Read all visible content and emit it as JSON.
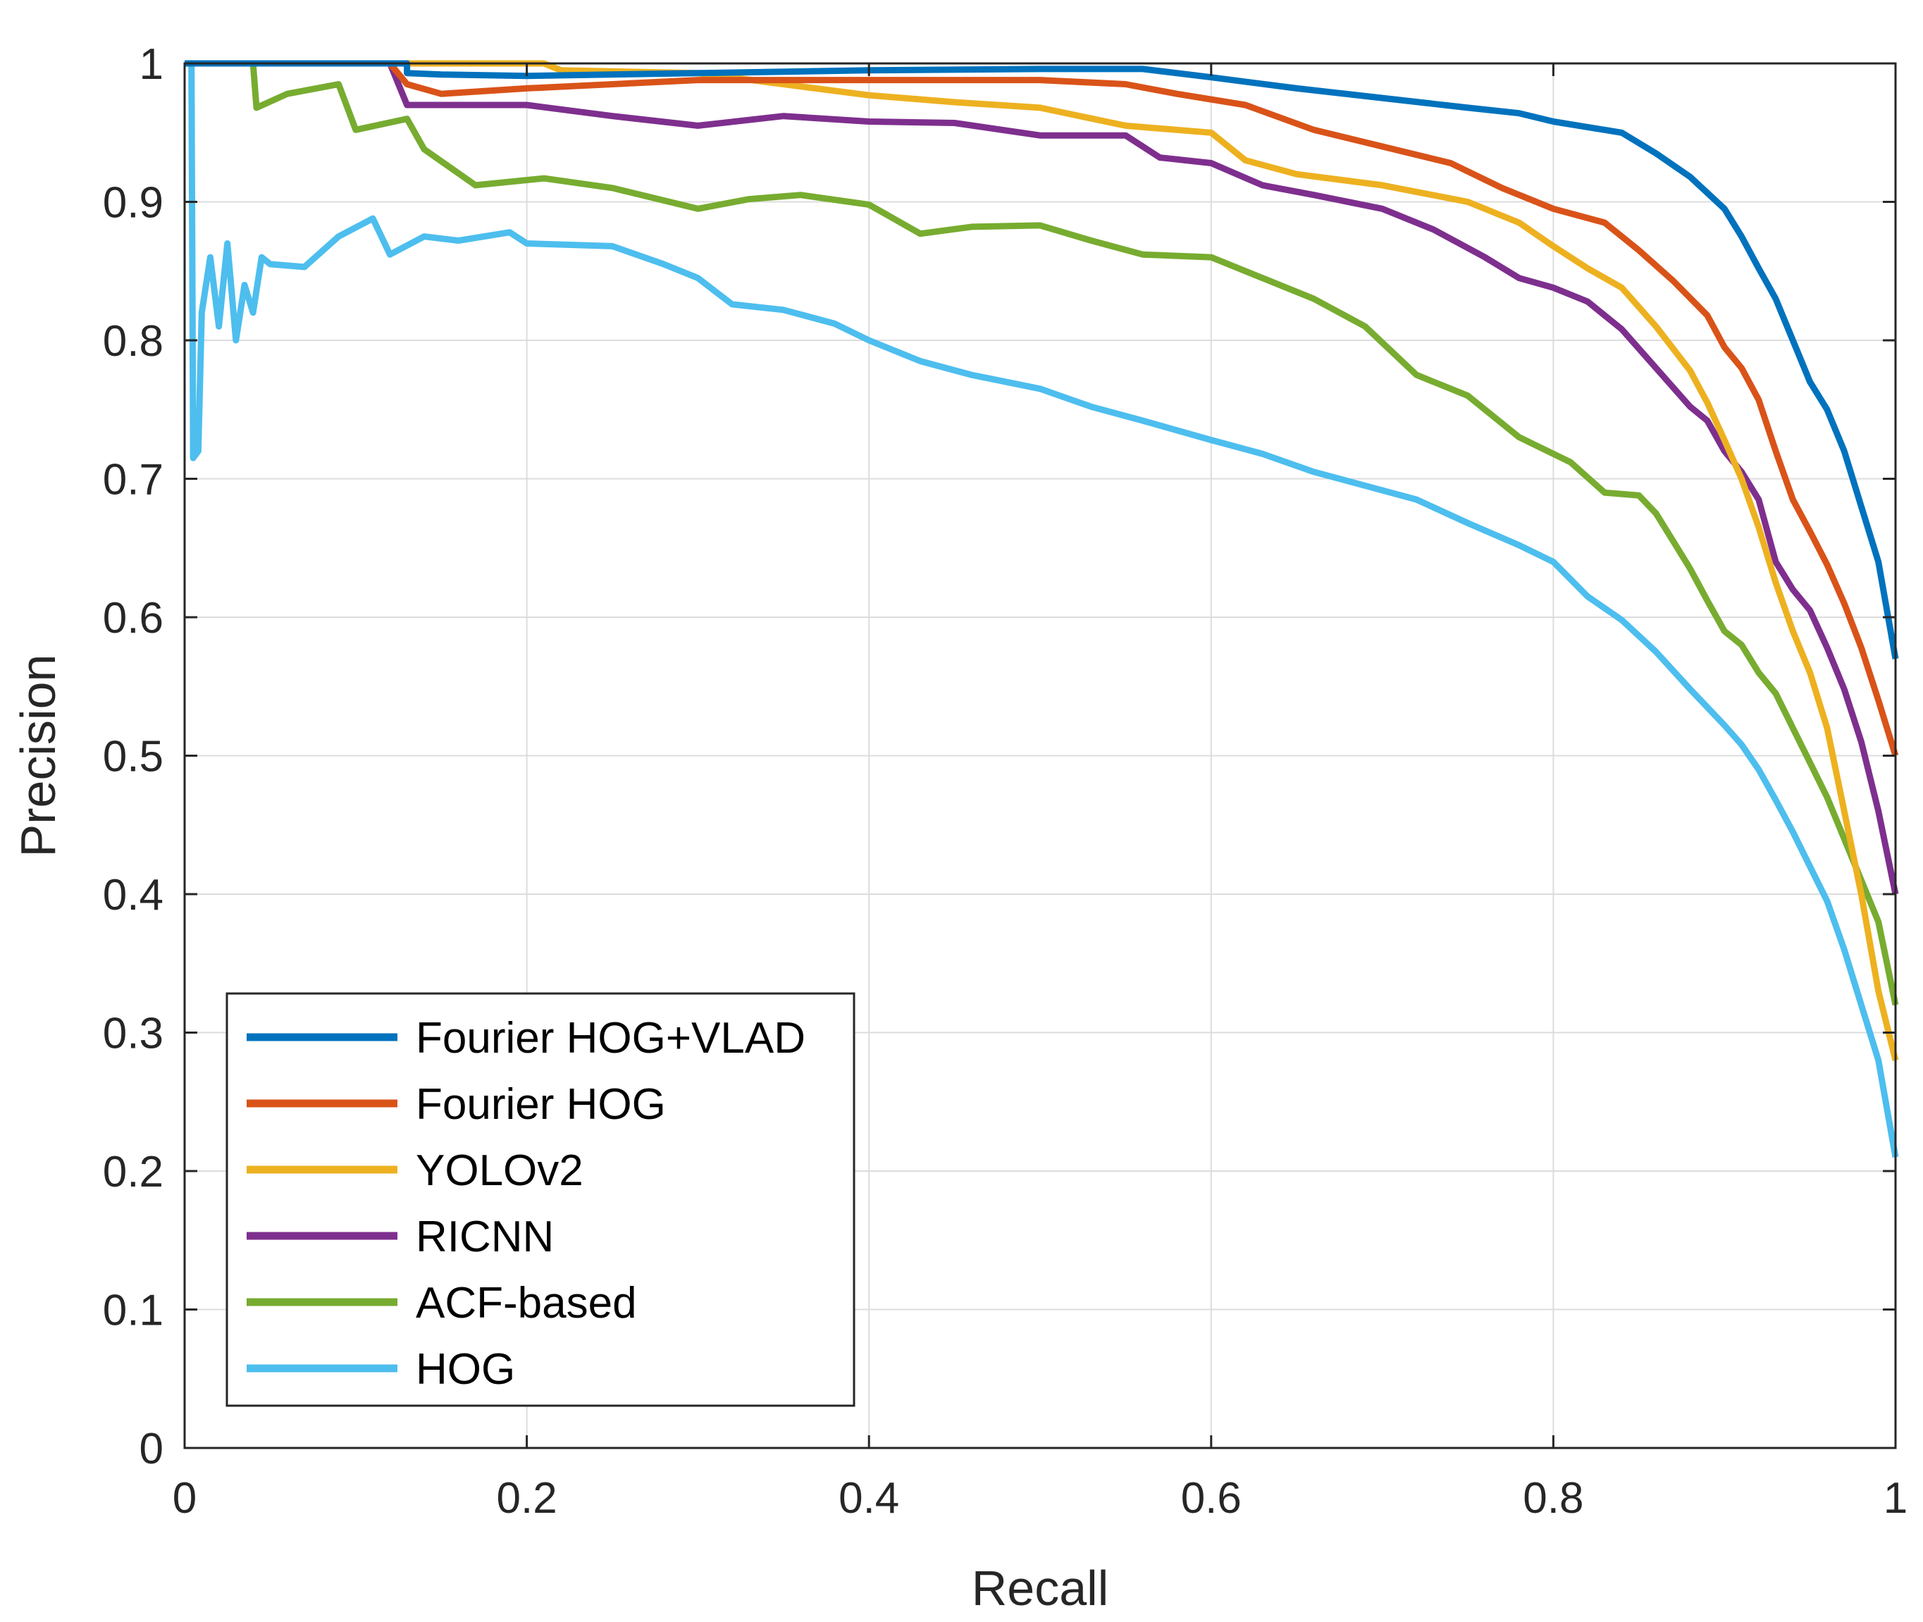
{
  "chart_data": {
    "type": "line",
    "title": "",
    "xlabel": "Recall",
    "ylabel": "Precision",
    "xlim": [
      0,
      1
    ],
    "ylim": [
      0,
      1
    ],
    "grid": true,
    "legend_location": "bottom-left",
    "xticks": [
      "0",
      "0.2",
      "0.4",
      "0.6",
      "0.8",
      "1"
    ],
    "yticks": [
      "0",
      "0.1",
      "0.2",
      "0.3",
      "0.4",
      "0.5",
      "0.6",
      "0.7",
      "0.8",
      "0.9",
      "1"
    ],
    "series": [
      {
        "name": "Fourier HOG+VLAD",
        "color": "#0072BD",
        "points": [
          [
            0,
            1
          ],
          [
            0.13,
            1
          ],
          [
            0.13,
            0.993
          ],
          [
            0.15,
            0.992
          ],
          [
            0.2,
            0.991
          ],
          [
            0.3,
            0.993
          ],
          [
            0.4,
            0.995
          ],
          [
            0.5,
            0.996
          ],
          [
            0.56,
            0.996
          ],
          [
            0.6,
            0.99
          ],
          [
            0.65,
            0.982
          ],
          [
            0.7,
            0.975
          ],
          [
            0.75,
            0.968
          ],
          [
            0.78,
            0.964
          ],
          [
            0.8,
            0.958
          ],
          [
            0.82,
            0.954
          ],
          [
            0.84,
            0.95
          ],
          [
            0.86,
            0.935
          ],
          [
            0.88,
            0.918
          ],
          [
            0.9,
            0.895
          ],
          [
            0.91,
            0.875
          ],
          [
            0.92,
            0.852
          ],
          [
            0.93,
            0.83
          ],
          [
            0.94,
            0.8
          ],
          [
            0.95,
            0.77
          ],
          [
            0.96,
            0.75
          ],
          [
            0.97,
            0.72
          ],
          [
            0.98,
            0.68
          ],
          [
            0.99,
            0.64
          ],
          [
            1.0,
            0.57
          ]
        ]
      },
      {
        "name": "Fourier HOG",
        "color": "#D95319",
        "points": [
          [
            0,
            1
          ],
          [
            0.12,
            1
          ],
          [
            0.13,
            0.985
          ],
          [
            0.15,
            0.978
          ],
          [
            0.2,
            0.982
          ],
          [
            0.3,
            0.988
          ],
          [
            0.4,
            0.988
          ],
          [
            0.5,
            0.988
          ],
          [
            0.55,
            0.985
          ],
          [
            0.58,
            0.978
          ],
          [
            0.62,
            0.97
          ],
          [
            0.66,
            0.952
          ],
          [
            0.7,
            0.94
          ],
          [
            0.74,
            0.928
          ],
          [
            0.77,
            0.91
          ],
          [
            0.8,
            0.895
          ],
          [
            0.83,
            0.885
          ],
          [
            0.85,
            0.865
          ],
          [
            0.87,
            0.843
          ],
          [
            0.89,
            0.818
          ],
          [
            0.9,
            0.795
          ],
          [
            0.91,
            0.78
          ],
          [
            0.92,
            0.757
          ],
          [
            0.93,
            0.72
          ],
          [
            0.94,
            0.685
          ],
          [
            0.95,
            0.662
          ],
          [
            0.96,
            0.638
          ],
          [
            0.97,
            0.61
          ],
          [
            0.98,
            0.578
          ],
          [
            0.99,
            0.54
          ],
          [
            1.0,
            0.5
          ]
        ]
      },
      {
        "name": "YOLOv2",
        "color": "#EDB120",
        "points": [
          [
            0,
            1
          ],
          [
            0.21,
            1
          ],
          [
            0.22,
            0.995
          ],
          [
            0.3,
            0.993
          ],
          [
            0.35,
            0.985
          ],
          [
            0.4,
            0.977
          ],
          [
            0.45,
            0.972
          ],
          [
            0.5,
            0.968
          ],
          [
            0.55,
            0.955
          ],
          [
            0.6,
            0.95
          ],
          [
            0.62,
            0.93
          ],
          [
            0.65,
            0.92
          ],
          [
            0.7,
            0.912
          ],
          [
            0.75,
            0.9
          ],
          [
            0.78,
            0.885
          ],
          [
            0.8,
            0.868
          ],
          [
            0.82,
            0.852
          ],
          [
            0.84,
            0.838
          ],
          [
            0.86,
            0.81
          ],
          [
            0.88,
            0.778
          ],
          [
            0.89,
            0.755
          ],
          [
            0.9,
            0.728
          ],
          [
            0.91,
            0.7
          ],
          [
            0.92,
            0.665
          ],
          [
            0.93,
            0.625
          ],
          [
            0.94,
            0.59
          ],
          [
            0.95,
            0.56
          ],
          [
            0.96,
            0.52
          ],
          [
            0.97,
            0.46
          ],
          [
            0.98,
            0.4
          ],
          [
            0.99,
            0.33
          ],
          [
            1.0,
            0.28
          ]
        ]
      },
      {
        "name": "RICNN",
        "color": "#7E2F8E",
        "points": [
          [
            0,
            1
          ],
          [
            0.12,
            1
          ],
          [
            0.13,
            0.97
          ],
          [
            0.2,
            0.97
          ],
          [
            0.25,
            0.962
          ],
          [
            0.3,
            0.955
          ],
          [
            0.35,
            0.962
          ],
          [
            0.4,
            0.958
          ],
          [
            0.45,
            0.957
          ],
          [
            0.5,
            0.948
          ],
          [
            0.55,
            0.948
          ],
          [
            0.57,
            0.932
          ],
          [
            0.6,
            0.928
          ],
          [
            0.63,
            0.912
          ],
          [
            0.66,
            0.905
          ],
          [
            0.7,
            0.895
          ],
          [
            0.73,
            0.88
          ],
          [
            0.76,
            0.86
          ],
          [
            0.78,
            0.845
          ],
          [
            0.8,
            0.838
          ],
          [
            0.82,
            0.828
          ],
          [
            0.84,
            0.808
          ],
          [
            0.86,
            0.78
          ],
          [
            0.88,
            0.752
          ],
          [
            0.89,
            0.742
          ],
          [
            0.9,
            0.72
          ],
          [
            0.91,
            0.705
          ],
          [
            0.92,
            0.685
          ],
          [
            0.93,
            0.64
          ],
          [
            0.94,
            0.62
          ],
          [
            0.95,
            0.605
          ],
          [
            0.96,
            0.578
          ],
          [
            0.97,
            0.548
          ],
          [
            0.98,
            0.51
          ],
          [
            0.99,
            0.46
          ],
          [
            1.0,
            0.4
          ]
        ]
      },
      {
        "name": "ACF-based",
        "color": "#77AC30",
        "points": [
          [
            0,
            1
          ],
          [
            0.04,
            1
          ],
          [
            0.042,
            0.968
          ],
          [
            0.06,
            0.978
          ],
          [
            0.09,
            0.985
          ],
          [
            0.1,
            0.952
          ],
          [
            0.13,
            0.96
          ],
          [
            0.14,
            0.938
          ],
          [
            0.17,
            0.912
          ],
          [
            0.21,
            0.917
          ],
          [
            0.25,
            0.91
          ],
          [
            0.3,
            0.895
          ],
          [
            0.33,
            0.902
          ],
          [
            0.36,
            0.905
          ],
          [
            0.4,
            0.898
          ],
          [
            0.43,
            0.877
          ],
          [
            0.46,
            0.882
          ],
          [
            0.5,
            0.883
          ],
          [
            0.53,
            0.872
          ],
          [
            0.56,
            0.862
          ],
          [
            0.6,
            0.86
          ],
          [
            0.63,
            0.845
          ],
          [
            0.66,
            0.83
          ],
          [
            0.69,
            0.81
          ],
          [
            0.72,
            0.775
          ],
          [
            0.75,
            0.76
          ],
          [
            0.78,
            0.73
          ],
          [
            0.81,
            0.712
          ],
          [
            0.83,
            0.69
          ],
          [
            0.85,
            0.688
          ],
          [
            0.86,
            0.675
          ],
          [
            0.87,
            0.655
          ],
          [
            0.88,
            0.635
          ],
          [
            0.89,
            0.612
          ],
          [
            0.9,
            0.59
          ],
          [
            0.91,
            0.58
          ],
          [
            0.92,
            0.56
          ],
          [
            0.93,
            0.545
          ],
          [
            0.94,
            0.52
          ],
          [
            0.95,
            0.495
          ],
          [
            0.96,
            0.47
          ],
          [
            0.97,
            0.44
          ],
          [
            0.98,
            0.41
          ],
          [
            0.99,
            0.38
          ],
          [
            1.0,
            0.32
          ]
        ]
      },
      {
        "name": "HOG",
        "color": "#4DBEEE",
        "points": [
          [
            0,
            1
          ],
          [
            0.004,
            1
          ],
          [
            0.005,
            0.715
          ],
          [
            0.008,
            0.72
          ],
          [
            0.01,
            0.82
          ],
          [
            0.015,
            0.86
          ],
          [
            0.02,
            0.81
          ],
          [
            0.025,
            0.87
          ],
          [
            0.03,
            0.8
          ],
          [
            0.035,
            0.84
          ],
          [
            0.04,
            0.82
          ],
          [
            0.045,
            0.86
          ],
          [
            0.05,
            0.855
          ],
          [
            0.07,
            0.853
          ],
          [
            0.09,
            0.875
          ],
          [
            0.11,
            0.888
          ],
          [
            0.12,
            0.862
          ],
          [
            0.14,
            0.875
          ],
          [
            0.16,
            0.872
          ],
          [
            0.19,
            0.878
          ],
          [
            0.2,
            0.87
          ],
          [
            0.25,
            0.868
          ],
          [
            0.28,
            0.855
          ],
          [
            0.3,
            0.845
          ],
          [
            0.32,
            0.826
          ],
          [
            0.35,
            0.822
          ],
          [
            0.38,
            0.812
          ],
          [
            0.4,
            0.8
          ],
          [
            0.43,
            0.785
          ],
          [
            0.46,
            0.775
          ],
          [
            0.5,
            0.765
          ],
          [
            0.53,
            0.752
          ],
          [
            0.56,
            0.742
          ],
          [
            0.6,
            0.728
          ],
          [
            0.63,
            0.718
          ],
          [
            0.66,
            0.705
          ],
          [
            0.69,
            0.695
          ],
          [
            0.72,
            0.685
          ],
          [
            0.75,
            0.668
          ],
          [
            0.78,
            0.652
          ],
          [
            0.8,
            0.64
          ],
          [
            0.82,
            0.615
          ],
          [
            0.84,
            0.598
          ],
          [
            0.86,
            0.575
          ],
          [
            0.88,
            0.548
          ],
          [
            0.9,
            0.522
          ],
          [
            0.91,
            0.508
          ],
          [
            0.92,
            0.49
          ],
          [
            0.93,
            0.468
          ],
          [
            0.94,
            0.445
          ],
          [
            0.95,
            0.42
          ],
          [
            0.96,
            0.395
          ],
          [
            0.97,
            0.36
          ],
          [
            0.98,
            0.32
          ],
          [
            0.99,
            0.28
          ],
          [
            1.0,
            0.21
          ]
        ]
      }
    ]
  }
}
